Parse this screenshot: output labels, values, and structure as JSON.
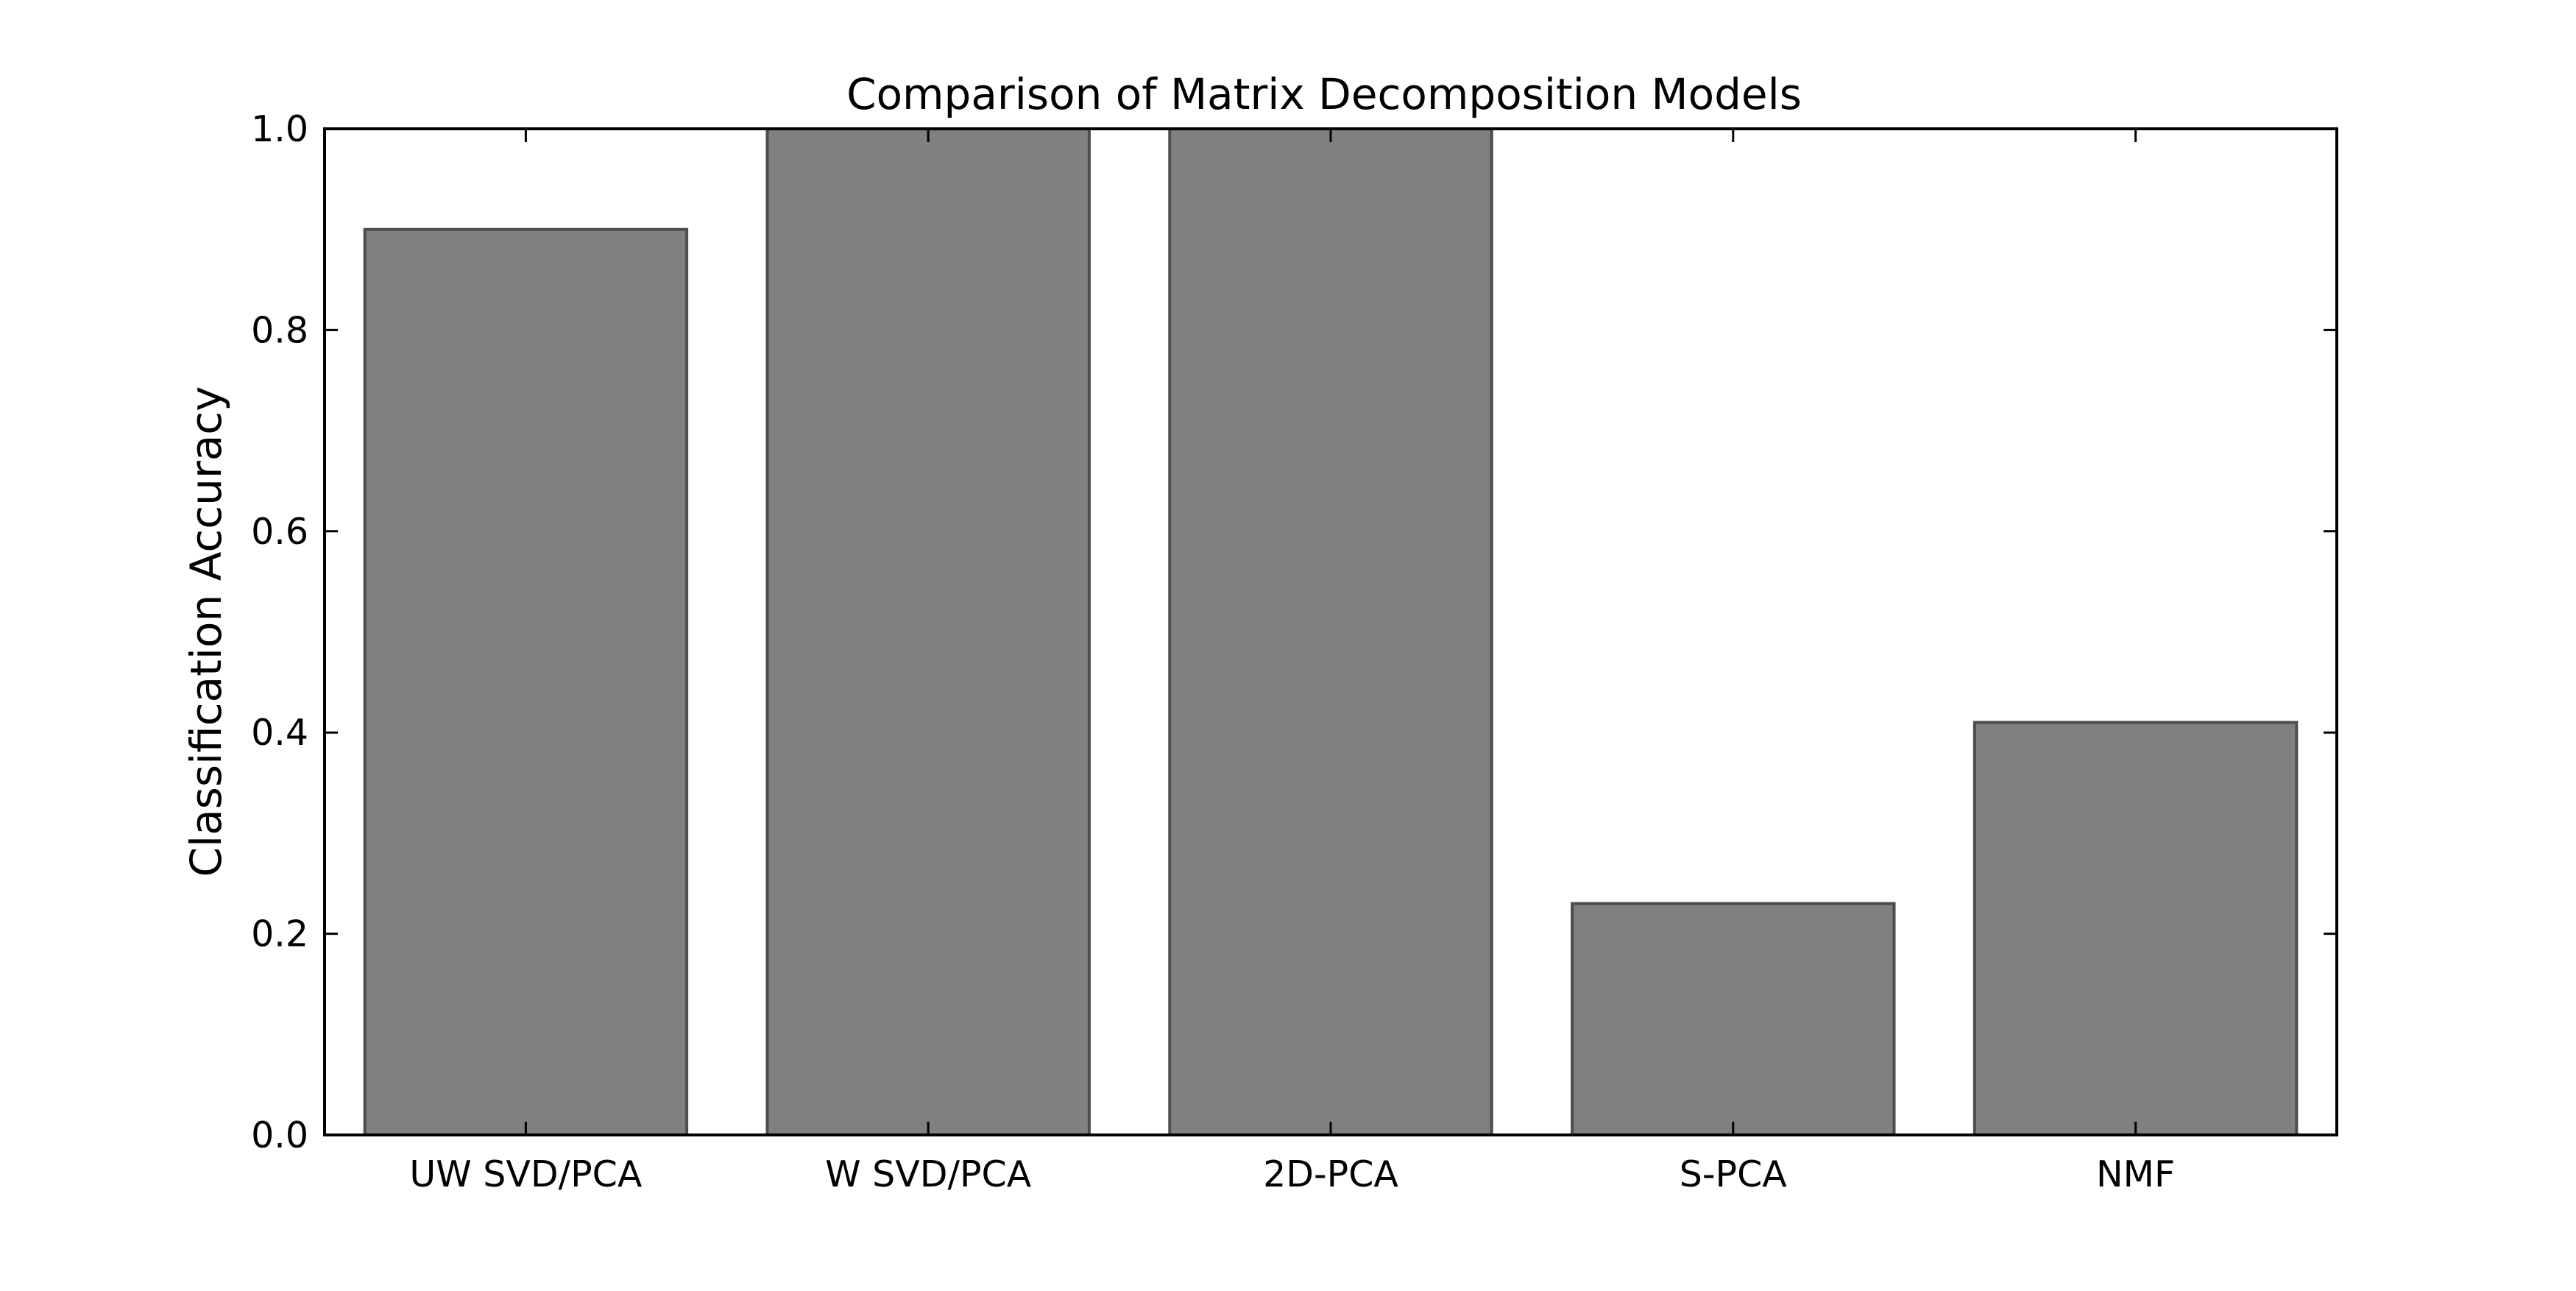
{
  "chart_data": {
    "type": "bar",
    "title": "Comparison of Matrix Decomposition Models",
    "xlabel": "",
    "ylabel": "Classification Accuracy",
    "categories": [
      "UW SVD/PCA",
      "W SVD/PCA",
      "2D-PCA",
      "S-PCA",
      "NMF"
    ],
    "values": [
      0.9,
      1.0,
      1.0,
      0.23,
      0.41
    ],
    "ylim": [
      0.0,
      1.0
    ],
    "yticks": [
      "0.0",
      "0.2",
      "0.4",
      "0.6",
      "0.8",
      "1.0"
    ],
    "grid": false,
    "legend": "none",
    "colors": {
      "bar_fill": "#808080",
      "bar_edge": "#4d4d4d",
      "axes": "#000000",
      "background": "#ffffff"
    }
  }
}
